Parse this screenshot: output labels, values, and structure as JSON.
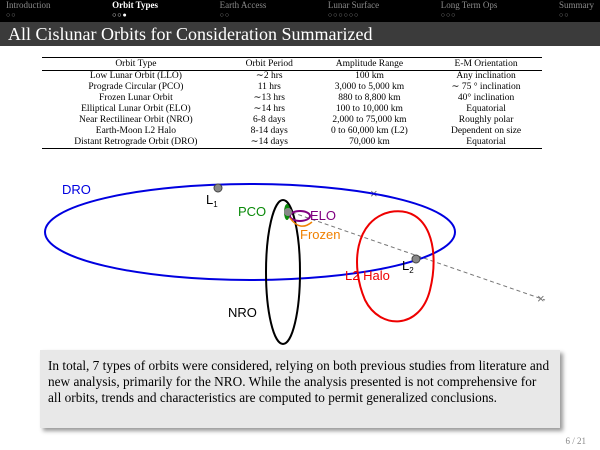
{
  "nav": {
    "sections": [
      "Introduction",
      "Orbit Types",
      "Earth Access",
      "Lunar Surface",
      "Long Term Ops",
      "Summary"
    ]
  },
  "header": {
    "title": "All Cislunar Orbits for Consideration Summarized"
  },
  "table": {
    "columns": [
      "Orbit Type",
      "Orbit Period",
      "Amplitude Range",
      "E-M Orientation"
    ],
    "rows": [
      [
        "Low Lunar Orbit (LLO)",
        "∼2 hrs",
        "100 km",
        "Any inclination"
      ],
      [
        "Prograde Circular (PCO)",
        "11 hrs",
        "3,000 to 5,000 km",
        "∼ 75 ° inclination"
      ],
      [
        "Frozen Lunar Orbit",
        "∼13 hrs",
        "880 to 8,800 km",
        "40° inclination"
      ],
      [
        "Elliptical Lunar Orbit (ELO)",
        "∼14 hrs",
        "100 to 10,000 km",
        "Equatorial"
      ],
      [
        "Near Rectilinear Orbit (NRO)",
        "6-8 days",
        "2,000 to 75,000 km",
        "Roughly polar"
      ],
      [
        "Earth-Moon L2 Halo",
        "8-14 days",
        "0 to 60,000 km (L2)",
        "Dependent on size"
      ],
      [
        "Distant Retrograde Orbit (DRO)",
        "∼14 days",
        "70,000 km",
        "Equatorial"
      ]
    ]
  },
  "diagram": {
    "labels": {
      "dro": "DRO",
      "l1": "L",
      "l1_sub": "1",
      "pco": "PCO",
      "elo": "ELO",
      "frozen": "Frozen",
      "halo": "L2 Halo",
      "l2": "L",
      "l2_sub": "2",
      "nro": "NRO"
    }
  },
  "body": {
    "text": "In total, 7 types of orbits were considered, relying on both previous studies from literature and new analysis, primarily for the NRO. While the analysis presented is not comprehensive for all orbits, trends and characteristics are computed to permit generalized conclusions."
  },
  "footer": {
    "page": "6 / 21"
  }
}
